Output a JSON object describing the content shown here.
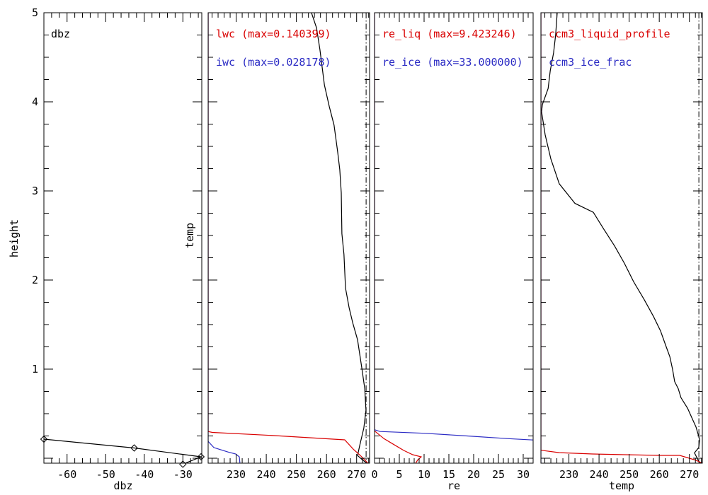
{
  "texts": {
    "panel1_inner_label": "dbz",
    "height_axis_title": "height",
    "panel2_y_title": "temp",
    "x_title_p1": "dbz",
    "x_title_p3": "re",
    "x_title_p4": "temp"
  },
  "colors": {
    "red": "#d90000",
    "blue": "#2b2bc4",
    "black": "#000000",
    "background": "#ffffff"
  },
  "y_axis": {
    "title": "height",
    "range": [
      -0.0556,
      5.0
    ],
    "majors": [
      0,
      1,
      2,
      3,
      4,
      5
    ],
    "major_labels": [
      "",
      "1",
      "2",
      "3",
      "4",
      "5"
    ],
    "minor_step": 0.25
  },
  "chart_data": [
    {
      "type": "line",
      "name": "dbz-panel",
      "inner_label": "dbz",
      "x_title": "dbz",
      "x_range": [
        -66.0,
        -25.1
      ],
      "x_majors": [
        -60,
        -50,
        -40,
        -30
      ],
      "x_major_labels": [
        "-60",
        "-50",
        "-40",
        "-30"
      ],
      "x_minor_step": 2,
      "legend": [],
      "series": [
        {
          "name": "dbz_profile",
          "color": "black",
          "x_scale": "data",
          "marker": "diamond",
          "points": [
            [
              -66.0,
              0.214
            ],
            [
              -42.6,
              0.115
            ],
            [
              -25.3,
              0.016
            ],
            [
              -30.0,
              -0.067
            ]
          ]
        }
      ]
    },
    {
      "type": "line",
      "name": "lwc-iwc-panel",
      "y_title": "temp",
      "x_title": "",
      "x_range": [
        220.7,
        274.3
      ],
      "x_majors": [
        230,
        240,
        250,
        260,
        270
      ],
      "x_major_labels": [
        "230",
        "240",
        "250",
        "260",
        "270"
      ],
      "x_minor_step": 2,
      "ref_line_x": 273.15,
      "legend": [
        {
          "text": "lwc (max=0.140399)",
          "color": "red"
        },
        {
          "text": "iwc (max=0.028178)",
          "color": "blue"
        }
      ],
      "series": [
        {
          "name": "temp_profile",
          "color": "black",
          "x_scale": "data",
          "points": [
            [
              255.0,
              5.0
            ],
            [
              256.7,
              4.83
            ],
            [
              257.8,
              4.59
            ],
            [
              259.3,
              4.19
            ],
            [
              260.9,
              3.95
            ],
            [
              262.5,
              3.74
            ],
            [
              263.7,
              3.44
            ],
            [
              264.4,
              3.24
            ],
            [
              264.9,
              2.98
            ],
            [
              265.1,
              2.52
            ],
            [
              265.8,
              2.29
            ],
            [
              266.3,
              1.91
            ],
            [
              267.5,
              1.69
            ],
            [
              268.7,
              1.52
            ],
            [
              270.3,
              1.33
            ],
            [
              271.7,
              1.02
            ],
            [
              272.7,
              0.78
            ],
            [
              273.1,
              0.54
            ],
            [
              272.4,
              0.34
            ],
            [
              271.0,
              0.14
            ],
            [
              270.3,
              0.03
            ],
            [
              272.0,
              -0.02
            ],
            [
              273.4,
              -0.0556
            ]
          ]
        },
        {
          "name": "lwc",
          "color": "red",
          "x_scale": "fraction",
          "max": 0.140399,
          "points": [
            [
              0,
              5.0
            ],
            [
              0,
              0.3
            ],
            [
              0.026,
              0.29
            ],
            [
              0.42,
              0.253
            ],
            [
              0.846,
              0.206
            ],
            [
              0.9,
              0.1
            ],
            [
              0.947,
              0.024
            ],
            [
              0.99,
              -0.0556
            ]
          ]
        },
        {
          "name": "iwc",
          "color": "blue",
          "x_scale": "fraction",
          "max": 0.028178,
          "points": [
            [
              0,
              5.0
            ],
            [
              0,
              0.19
            ],
            [
              0.035,
              0.12
            ],
            [
              0.123,
              0.07
            ],
            [
              0.171,
              0.048
            ],
            [
              0.193,
              0.016
            ],
            [
              0.197,
              -0.0556
            ]
          ]
        }
      ]
    },
    {
      "type": "line",
      "name": "re-panel",
      "x_title": "re",
      "x_range": [
        0,
        32
      ],
      "x_majors": [
        0,
        5,
        10,
        15,
        20,
        25,
        30
      ],
      "x_major_labels": [
        "0",
        "5",
        "10",
        "15",
        "20",
        "25",
        "30"
      ],
      "x_minor_step": 1,
      "legend": [
        {
          "text": "re_liq (max=9.423246)",
          "color": "red"
        },
        {
          "text": "re_ice (max=33.000000)",
          "color": "blue"
        }
      ],
      "series": [
        {
          "name": "re_liq",
          "color": "red",
          "x_scale": "data",
          "max": 9.423246,
          "points": [
            [
              0,
              5.0
            ],
            [
              0,
              0.3
            ],
            [
              0.14,
              0.3
            ],
            [
              1.9,
              0.22
            ],
            [
              3.7,
              0.16
            ],
            [
              5.9,
              0.087
            ],
            [
              7.7,
              0.04
            ],
            [
              9.42,
              0.016
            ],
            [
              8.7,
              -0.02
            ],
            [
              8.3,
              -0.0556
            ]
          ]
        },
        {
          "name": "re_ice",
          "color": "blue",
          "x_scale": "data",
          "max": 33.0,
          "points": [
            [
              0,
              5.0
            ],
            [
              0,
              0.32
            ],
            [
              1.1,
              0.3
            ],
            [
              10.0,
              0.28
            ],
            [
              18.7,
              0.25
            ],
            [
              27.0,
              0.22
            ],
            [
              32.0,
              0.205
            ]
          ]
        }
      ]
    },
    {
      "type": "line",
      "name": "ccm3-panel",
      "x_title": "temp",
      "x_range": [
        220.7,
        274.3
      ],
      "x_majors": [
        230,
        240,
        250,
        260,
        270
      ],
      "x_major_labels": [
        "230",
        "240",
        "250",
        "260",
        "270"
      ],
      "x_minor_step": 2,
      "ref_line_x": 273.15,
      "legend": [
        {
          "text": "ccm3_liquid_profile",
          "color": "red"
        },
        {
          "text": "ccm3_ice_frac",
          "color": "blue"
        }
      ],
      "series": [
        {
          "name": "temp_profile",
          "color": "black",
          "x_scale": "data",
          "points": [
            [
              226.1,
              5.0
            ],
            [
              225.6,
              4.75
            ],
            [
              224.9,
              4.55
            ],
            [
              223.8,
              4.35
            ],
            [
              223.1,
              4.15
            ],
            [
              221.2,
              3.97
            ],
            [
              220.9,
              3.89
            ],
            [
              222.1,
              3.63
            ],
            [
              224.0,
              3.36
            ],
            [
              226.8,
              3.08
            ],
            [
              232.0,
              2.86
            ],
            [
              238.1,
              2.76
            ],
            [
              241.4,
              2.58
            ],
            [
              245.2,
              2.38
            ],
            [
              248.4,
              2.19
            ],
            [
              251.5,
              1.98
            ],
            [
              255.0,
              1.78
            ],
            [
              258.1,
              1.59
            ],
            [
              260.4,
              1.43
            ],
            [
              262.3,
              1.25
            ],
            [
              263.5,
              1.14
            ],
            [
              264.4,
              1.0
            ],
            [
              265.1,
              0.86
            ],
            [
              266.3,
              0.78
            ],
            [
              267.2,
              0.68
            ],
            [
              269.4,
              0.56
            ],
            [
              271.0,
              0.44
            ],
            [
              272.2,
              0.35
            ],
            [
              272.9,
              0.27
            ],
            [
              273.4,
              0.21
            ],
            [
              273.1,
              0.12
            ],
            [
              271.7,
              0.06
            ],
            [
              272.9,
              -0.02
            ],
            [
              273.6,
              -0.0556
            ]
          ]
        },
        {
          "name": "ccm3_ice_frac",
          "color": "blue",
          "x_scale": "fraction",
          "points": [
            [
              0,
              5.0
            ],
            [
              0,
              -0.0556
            ]
          ]
        },
        {
          "name": "ccm3_liquid_profile",
          "color": "red",
          "x_scale": "fraction",
          "points": [
            [
              0,
              5.0
            ],
            [
              0,
              0.09
            ],
            [
              0.114,
              0.063
            ],
            [
              0.32,
              0.048
            ],
            [
              0.52,
              0.04
            ],
            [
              0.737,
              0.032
            ],
            [
              0.86,
              0.032
            ],
            [
              0.956,
              -0.02
            ],
            [
              1.0,
              -0.0556
            ]
          ]
        }
      ]
    }
  ]
}
